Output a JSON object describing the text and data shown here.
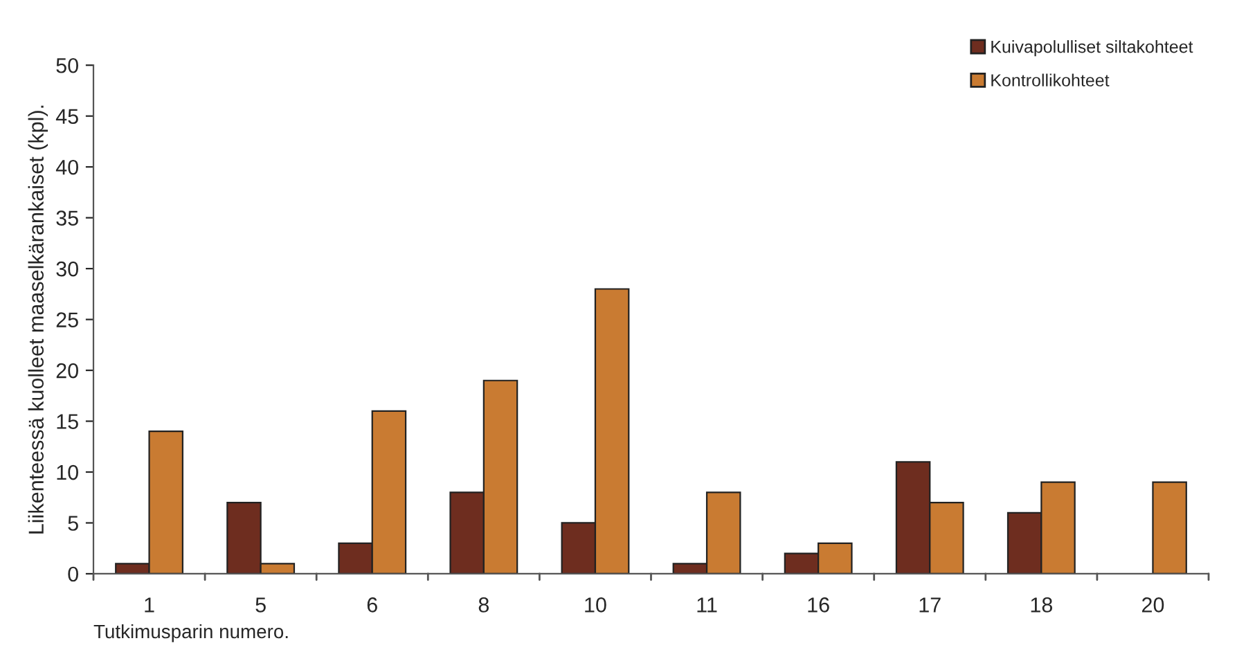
{
  "chart_data": {
    "type": "bar",
    "xlabel": "Tutkimusparin numero.",
    "ylabel": "Liikenteessä kuolleet maaselkärankaiset (kpl).",
    "categories": [
      "1",
      "5",
      "6",
      "8",
      "10",
      "11",
      "16",
      "17",
      "18",
      "20"
    ],
    "series": [
      {
        "name": "Kuivapolulliset siltakohteet",
        "color": "#6e2d1f",
        "values": [
          1,
          7,
          3,
          8,
          5,
          1,
          2,
          11,
          6,
          null
        ]
      },
      {
        "name": "Kontrollikohteet",
        "color": "#c97b32",
        "values": [
          14,
          1,
          16,
          19,
          28,
          8,
          3,
          7,
          9,
          9
        ]
      }
    ],
    "ylim": [
      0,
      50
    ],
    "yticks": [
      0,
      5,
      10,
      15,
      20,
      25,
      30,
      35,
      40,
      45,
      50
    ],
    "grid": false,
    "legend": "top right"
  }
}
